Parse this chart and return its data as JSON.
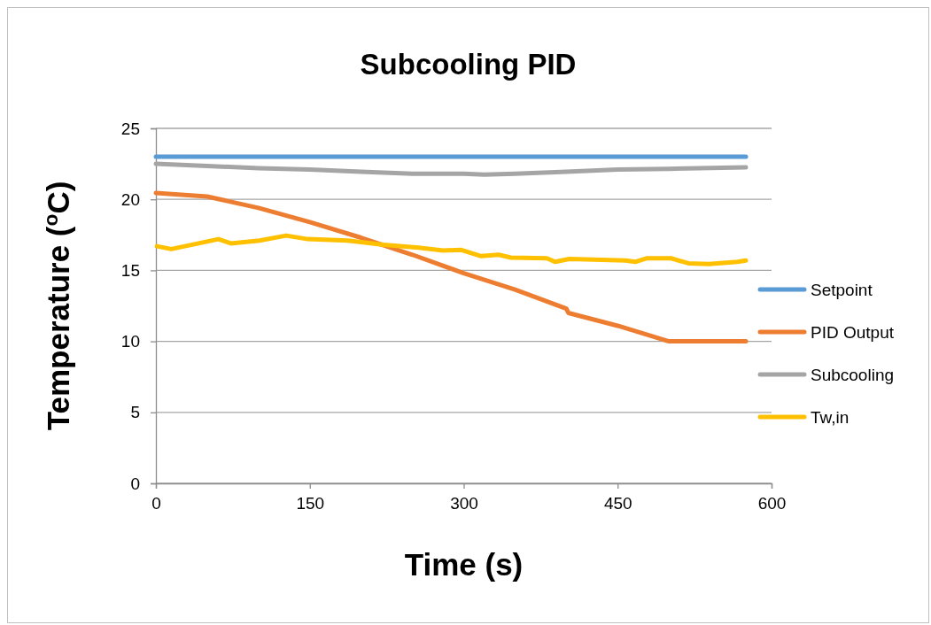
{
  "chart_data": {
    "type": "line",
    "title": "Subcooling PID",
    "xlabel": "Time (s)",
    "ylabel": "Temperature ($^{o}$C)",
    "xlim": [
      0,
      600
    ],
    "xticks": [
      0,
      150,
      300,
      450,
      600
    ],
    "ylim": [
      0,
      25
    ],
    "yticks": [
      0,
      5,
      10,
      15,
      20,
      25
    ],
    "grid": "y",
    "legend": "right",
    "series": [
      {
        "name": "Setpoint",
        "color": "#5b9bd5",
        "x": [
          0,
          100,
          200,
          300,
          400,
          500,
          575
        ],
        "values": [
          23,
          23,
          23,
          23,
          23,
          23,
          23
        ]
      },
      {
        "name": "PID Output",
        "color": "#ed7d31",
        "x": [
          0,
          50,
          100,
          150,
          200,
          250,
          300,
          350,
          400,
          402,
          450,
          500,
          575
        ],
        "values": [
          20.45,
          20.2,
          19.4,
          18.4,
          17.3,
          16.1,
          14.8,
          13.65,
          12.3,
          12.0,
          11.1,
          10.0,
          10.0
        ]
      },
      {
        "name": "Subcooling",
        "color": "#a5a5a5",
        "x": [
          0,
          50,
          100,
          150,
          200,
          250,
          300,
          320,
          350,
          400,
          450,
          500,
          575
        ],
        "values": [
          22.5,
          22.35,
          22.2,
          22.1,
          21.95,
          21.8,
          21.8,
          21.75,
          21.8,
          21.95,
          22.1,
          22.15,
          22.25
        ]
      },
      {
        "name": "Tw,in",
        "color": "#ffc000",
        "x": [
          1,
          15,
          61,
          73,
          101,
          127,
          148,
          187,
          222,
          256,
          280,
          297,
          317,
          334,
          346,
          381,
          389,
          403,
          458,
          467,
          478,
          502,
          519,
          539,
          567,
          575
        ],
        "values": [
          16.7,
          16.5,
          17.2,
          16.9,
          17.1,
          17.45,
          17.2,
          17.1,
          16.8,
          16.6,
          16.4,
          16.45,
          16.0,
          16.1,
          15.9,
          15.85,
          15.6,
          15.8,
          15.7,
          15.6,
          15.85,
          15.85,
          15.5,
          15.45,
          15.6,
          15.7
        ]
      }
    ]
  }
}
